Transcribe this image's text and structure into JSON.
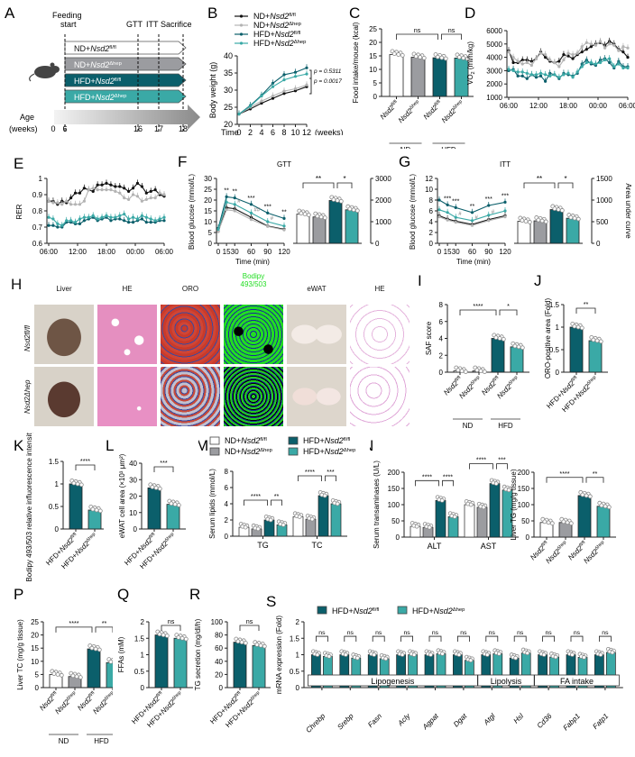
{
  "colors": {
    "nd_fl": "#ffffff",
    "nd_hep": "#9b9ca0",
    "hfd_fl": "#0b5f6b",
    "hfd_hep": "#3aa9a6",
    "black": "#111111",
    "grey_line": "#b3b3b3",
    "bodipy_green": "#22dd22",
    "light_bg": "#f2f2f2",
    "dark_bg": "#d6d6d6"
  },
  "groups": {
    "nd_fl": "ND+Nsd2fl/fl",
    "nd_hep": "ND+Nsd2Δhep",
    "hfd_fl": "HFD+Nsd2fl/fl",
    "hfd_hep": "HFD+Nsd2Δhep"
  },
  "panel_labels": [
    "A",
    "B",
    "C",
    "D",
    "E",
    "F",
    "G",
    "H",
    "I",
    "J",
    "K",
    "L",
    "M",
    "N",
    "O",
    "P",
    "Q",
    "R",
    "S"
  ],
  "panelA": {
    "feeding_start": "Feeding start",
    "gtt": "GTT",
    "itt": "ITT",
    "sacrifice": "Sacrifice",
    "bars": [
      "ND+Nsd2fl/fl",
      "ND+Nsd2Δhep",
      "HFD+Nsd2fl/fl",
      "HFD+Nsd2Δhep"
    ],
    "age_label": "Age",
    "weeks_label": "(weeks)",
    "ticks": [
      "0",
      "6",
      "16",
      "17",
      "18"
    ]
  },
  "chart_data": [
    {
      "id": "B",
      "type": "line",
      "title": "",
      "xlabel": "Time",
      "xunit": "(weeks)",
      "ylabel": "Body weight (g)",
      "x": [
        0,
        2,
        4,
        6,
        8,
        10,
        12
      ],
      "ylim": [
        20,
        40
      ],
      "yticks": [
        20,
        25,
        30,
        35,
        40
      ],
      "series": [
        {
          "name": "ND+Nsd2fl/fl",
          "values": [
            23,
            24.5,
            26.2,
            27.6,
            29,
            29.8,
            31
          ]
        },
        {
          "name": "ND+Nsd2Δhep",
          "values": [
            23,
            25,
            26.8,
            28.3,
            29.7,
            30.4,
            31.5
          ]
        },
        {
          "name": "HFD+Nsd2fl/fl",
          "values": [
            23,
            25.5,
            28.5,
            32,
            34.5,
            35.2,
            36.5
          ]
        },
        {
          "name": "HFD+Nsd2Δhep",
          "values": [
            23,
            25.3,
            28.3,
            31,
            33,
            34,
            34.7
          ]
        }
      ],
      "annotations": [
        "p = 0.5311",
        "p = 0.0017"
      ]
    },
    {
      "id": "C",
      "type": "bar",
      "ylabel": "Food intake/mouse (kcal)",
      "categories": [
        "Nsd2fl/fl",
        "Nsd2Δhep",
        "Nsd2fl/fl",
        "Nsd2Δhep"
      ],
      "group_labels": [
        "ND",
        "HFD"
      ],
      "values": [
        15.5,
        14.5,
        14.3,
        14.2
      ],
      "ylim": [
        0,
        25
      ],
      "yticks": [
        0,
        5,
        10,
        15,
        20,
        25
      ],
      "sig": [
        "ns",
        "ns"
      ]
    },
    {
      "id": "D",
      "type": "line",
      "ylabel": "VO2 (ml/h/kg)",
      "xticks": [
        "06:00",
        "12:00",
        "18:00",
        "00:00",
        "06:00"
      ],
      "ylim": [
        1000,
        6000
      ],
      "yticks": [
        1000,
        2000,
        3000,
        4000,
        5000,
        6000
      ],
      "shading": [
        "Light",
        "Dark"
      ],
      "series": [
        {
          "name": "ND+Nsd2fl/fl",
          "values": [
            4500,
            3600,
            3600,
            3800,
            3800,
            3700,
            3900,
            4400,
            4000,
            3700,
            3600,
            3700,
            4200,
            4100,
            3900,
            4200,
            4400,
            4600,
            4800,
            5000,
            5100,
            4900,
            5200,
            5000,
            4600,
            4400,
            4000
          ]
        },
        {
          "name": "ND+Nsd2Δhep",
          "values": [
            4400,
            4000,
            3700,
            3500,
            3600,
            3400,
            3900,
            4300,
            4200,
            3800,
            3600,
            3300,
            3800,
            4300,
            4200,
            4300,
            4800,
            5100,
            5000,
            4900,
            5200,
            4700,
            5000,
            4900,
            4500,
            4800,
            4700
          ]
        },
        {
          "name": "HFD+Nsd2fl/fl",
          "values": [
            3000,
            3100,
            2600,
            2600,
            2400,
            2700,
            2500,
            2600,
            2200,
            2800,
            2700,
            2400,
            2800,
            2700,
            2600,
            2800,
            3500,
            3800,
            3500,
            3400,
            3800,
            3900,
            3600,
            3200,
            3700,
            3300,
            3300
          ]
        },
        {
          "name": "HFD+Nsd2Δhep",
          "values": [
            3100,
            3000,
            2900,
            2900,
            2800,
            2700,
            2700,
            2800,
            2700,
            2600,
            2700,
            2500,
            2700,
            2800,
            2500,
            2900,
            3300,
            3600,
            3600,
            3500,
            3600,
            3800,
            3900,
            3300,
            3500,
            3200,
            3200
          ]
        }
      ]
    },
    {
      "id": "E",
      "type": "line",
      "ylabel": "RER",
      "xticks": [
        "06:00",
        "12:00",
        "18:00",
        "00:00",
        "06:00"
      ],
      "ylim": [
        0.6,
        1.0
      ],
      "yticks": [
        0.6,
        0.7,
        0.8,
        0.9,
        1.0
      ],
      "shading": [
        "Light",
        "Dark"
      ],
      "series": [
        {
          "name": "ND+Nsd2fl/fl",
          "values": [
            0.86,
            0.86,
            0.84,
            0.86,
            0.85,
            0.88,
            0.91,
            0.91,
            0.94,
            0.93,
            0.92,
            0.96,
            0.96,
            0.97,
            0.96,
            0.95,
            0.95,
            0.94,
            0.92,
            0.94,
            0.97,
            0.95,
            0.91,
            0.92,
            0.93,
            0.9,
            0.89
          ]
        },
        {
          "name": "ND+Nsd2Δhep",
          "values": [
            0.86,
            0.85,
            0.85,
            0.84,
            0.86,
            0.84,
            0.84,
            0.84,
            0.86,
            0.93,
            0.94,
            0.93,
            0.93,
            0.93,
            0.93,
            0.92,
            0.91,
            0.88,
            0.87,
            0.9,
            0.89,
            0.86,
            0.87,
            0.88,
            0.88,
            0.91,
            0.9
          ]
        },
        {
          "name": "HFD+Nsd2fl/fl",
          "values": [
            0.71,
            0.71,
            0.7,
            0.7,
            0.73,
            0.73,
            0.72,
            0.72,
            0.74,
            0.75,
            0.76,
            0.74,
            0.75,
            0.76,
            0.74,
            0.75,
            0.75,
            0.74,
            0.73,
            0.73,
            0.74,
            0.75,
            0.73,
            0.73,
            0.73,
            0.74,
            0.74
          ]
        },
        {
          "name": "HFD+Nsd2Δhep",
          "values": [
            0.76,
            0.75,
            0.72,
            0.71,
            0.74,
            0.74,
            0.73,
            0.75,
            0.76,
            0.76,
            0.77,
            0.75,
            0.76,
            0.77,
            0.76,
            0.76,
            0.77,
            0.78,
            0.75,
            0.76,
            0.75,
            0.77,
            0.76,
            0.75,
            0.74,
            0.75,
            0.76
          ]
        }
      ]
    },
    {
      "id": "F-line",
      "type": "line",
      "title": "GTT",
      "xlabel": "Time (min)",
      "ylabel": "Blood glucose (mmol/L)",
      "x": [
        0,
        15,
        30,
        60,
        90,
        120
      ],
      "ylim": [
        0,
        30
      ],
      "yticks": [
        0,
        5,
        10,
        15,
        20,
        25,
        30
      ],
      "series": [
        {
          "name": "ND+Nsd2fl/fl",
          "values": [
            5.5,
            16.5,
            16,
            12,
            8,
            6.5
          ]
        },
        {
          "name": "ND+Nsd2Δhep",
          "values": [
            5.5,
            15.5,
            15,
            11,
            7.8,
            6.2
          ]
        },
        {
          "name": "HFD+Nsd2fl/fl",
          "values": [
            7,
            21.5,
            21,
            18,
            14,
            11.5
          ]
        },
        {
          "name": "HFD+Nsd2Δhep",
          "values": [
            6.5,
            19,
            18,
            14,
            10,
            8
          ]
        }
      ],
      "sig": [
        "**",
        "**",
        "***",
        "***",
        "**"
      ],
      "sig_hash": [
        "#",
        "##",
        "#"
      ]
    },
    {
      "id": "F-bar",
      "type": "bar",
      "ylabel": "Area under curve",
      "values": [
        1350,
        1220,
        1980,
        1550
      ],
      "ylim": [
        0,
        3000
      ],
      "yticks": [
        0,
        1000,
        2000,
        3000
      ],
      "sig": [
        "**",
        "*"
      ]
    },
    {
      "id": "G-line",
      "type": "line",
      "title": "ITT",
      "xlabel": "Time (min)",
      "ylabel": "Blood glucose (mmol/L)",
      "x": [
        0,
        15,
        30,
        60,
        90,
        120
      ],
      "ylim": [
        0,
        12
      ],
      "yticks": [
        0,
        2,
        4,
        6,
        8,
        10,
        12
      ],
      "series": [
        {
          "name": "ND+Nsd2fl/fl",
          "values": [
            5.1,
            4.5,
            4.1,
            3.5,
            4.4,
            5.1
          ]
        },
        {
          "name": "ND+Nsd2Δhep",
          "values": [
            4.9,
            4.3,
            3.9,
            3.3,
            4.2,
            4.9
          ]
        },
        {
          "name": "HFD+Nsd2fl/fl",
          "values": [
            8,
            7.1,
            6.6,
            5.7,
            7,
            7.6
          ]
        },
        {
          "name": "HFD+Nsd2Δhep",
          "values": [
            6.2,
            5.7,
            4.8,
            4.2,
            5.2,
            6
          ]
        }
      ],
      "sig": [
        "***",
        "***",
        "**",
        "***",
        "***"
      ],
      "sig_hash": [
        "#",
        "#",
        "#"
      ]
    },
    {
      "id": "G-bar",
      "type": "bar",
      "ylabel": "Area under curve",
      "values": [
        510,
        520,
        780,
        580
      ],
      "ylim": [
        0,
        1500
      ],
      "yticks": [
        0,
        500,
        1000,
        1500
      ],
      "sig": [
        "**",
        "*"
      ]
    },
    {
      "id": "I",
      "type": "bar",
      "ylabel": "SAF score",
      "categories": [
        "Nsd2fl/fl",
        "Nsd2Δhep",
        "Nsd2fl/fl",
        "Nsd2Δhep"
      ],
      "group_labels": [
        "ND",
        "HFD"
      ],
      "values": [
        0.15,
        0.15,
        4,
        3
      ],
      "ylim": [
        0,
        8
      ],
      "yticks": [
        0,
        2,
        4,
        6,
        8
      ],
      "sig": [
        "****",
        "*"
      ]
    },
    {
      "id": "J",
      "type": "bar",
      "ylabel": "ORO-positive area (Fold)",
      "categories": [
        "HFD+Nsd2fl/fl",
        "HFD+Nsd2Δhep"
      ],
      "values": [
        1.0,
        0.7
      ],
      "ylim": [
        0,
        1.5
      ],
      "yticks": [
        0.0,
        0.5,
        1.0,
        1.5
      ],
      "sig": [
        "**"
      ]
    },
    {
      "id": "K",
      "type": "bar",
      "ylabel": "Bodipy 493/503 relative influorescence intensity (Fold)",
      "categories": [
        "HFD+Nsd2fl/fl",
        "HFD+Nsd2Δhep"
      ],
      "values": [
        1.0,
        0.42
      ],
      "ylim": [
        0,
        1.5
      ],
      "yticks": [
        0.0,
        0.5,
        1.0,
        1.5
      ],
      "sig": [
        "****"
      ]
    },
    {
      "id": "L",
      "type": "bar",
      "ylabel": "eWAT cell area (×10³ μm²)",
      "categories": [
        "HFD+Nsd2fl/fl",
        "HFD+Nsd2Δhep"
      ],
      "values": [
        25,
        15
      ],
      "ylim": [
        0,
        40
      ],
      "yticks": [
        0,
        10,
        20,
        30,
        40
      ],
      "sig": [
        "***"
      ]
    },
    {
      "id": "M",
      "type": "bar",
      "ylabel": "Serum lipids (mmol/L)",
      "categories": [
        "TG",
        "TC"
      ],
      "ylim": [
        0,
        8
      ],
      "yticks": [
        0,
        2,
        4,
        6,
        8
      ],
      "series": [
        {
          "name": "ND+Nsd2fl/fl",
          "values": [
            1.1,
            2.4
          ]
        },
        {
          "name": "ND+Nsd2Δhep",
          "values": [
            0.9,
            2.1
          ]
        },
        {
          "name": "HFD+Nsd2fl/fl",
          "values": [
            2.0,
            5.0
          ]
        },
        {
          "name": "HFD+Nsd2Δhep",
          "values": [
            1.4,
            4.0
          ]
        }
      ],
      "sig": [
        [
          "****",
          "**"
        ],
        [
          "****",
          "***"
        ]
      ]
    },
    {
      "id": "N",
      "type": "bar",
      "ylabel": "Serum transaminases (U/L)",
      "categories": [
        "ALT",
        "AST"
      ],
      "ylim": [
        0,
        200
      ],
      "yticks": [
        0,
        50,
        100,
        150,
        200
      ],
      "series": [
        {
          "name": "ND+Nsd2fl/fl",
          "values": [
            33,
            100
          ]
        },
        {
          "name": "ND+Nsd2Δhep",
          "values": [
            30,
            92
          ]
        },
        {
          "name": "HFD+Nsd2fl/fl",
          "values": [
            113,
            165
          ]
        },
        {
          "name": "HFD+Nsd2Δhep",
          "values": [
            63,
            145
          ]
        }
      ],
      "sig": [
        [
          "****",
          "****"
        ],
        [
          "****",
          "***"
        ]
      ]
    },
    {
      "id": "O",
      "type": "bar",
      "ylabel": "Liver TG (mg/g tissue)",
      "categories": [
        "Nsd2fl/fl",
        "Nsd2Δhep",
        "Nsd2fl/fl",
        "Nsd2Δhep"
      ],
      "group_labels": [
        "ND",
        "HFD"
      ],
      "values": [
        45,
        45,
        128,
        95
      ],
      "ylim": [
        0,
        200
      ],
      "yticks": [
        0,
        50,
        100,
        150,
        200
      ],
      "sig": [
        "****",
        "**"
      ]
    },
    {
      "id": "P",
      "type": "bar",
      "ylabel": "Liver TC (mg/g tissue)",
      "categories": [
        "Nsd2fl/fl",
        "Nsd2Δhep",
        "Nsd2fl/fl",
        "Nsd2Δhep"
      ],
      "group_labels": [
        "ND",
        "HFD"
      ],
      "values": [
        5,
        4.2,
        14.7,
        9.5
      ],
      "ylim": [
        0,
        25
      ],
      "yticks": [
        0,
        5,
        10,
        15,
        20,
        25
      ],
      "sig": [
        "****",
        "**"
      ]
    },
    {
      "id": "Q",
      "type": "bar",
      "ylabel": "FFAs (mM)",
      "categories": [
        "HFD+Nsd2fl/fl",
        "HFD+Nsd2Δhep"
      ],
      "values": [
        1.6,
        1.5
      ],
      "ylim": [
        0,
        2.0
      ],
      "yticks": [
        0.0,
        0.5,
        1.0,
        1.5,
        2.0
      ],
      "sig": [
        "ns"
      ]
    },
    {
      "id": "R",
      "type": "bar",
      "ylabel": "TG secretion (mg/dl/h)",
      "categories": [
        "HFD+Nsd2fl/fl",
        "HFD+Nsd2Δhep"
      ],
      "values": [
        69,
        64
      ],
      "ylim": [
        0,
        100
      ],
      "yticks": [
        0,
        20,
        40,
        60,
        80,
        100
      ],
      "sig": [
        "ns"
      ]
    },
    {
      "id": "S",
      "type": "bar",
      "ylabel": "mRNA expression (Fold)",
      "categories": [
        "Chrebp",
        "Srebp",
        "Fasn",
        "Acly",
        "Agpat",
        "Dgat",
        "Atgl",
        "Hsl",
        "Cd36",
        "Fabp1",
        "Fatp1"
      ],
      "ylim": [
        0,
        2.0
      ],
      "yticks": [
        0.0,
        0.5,
        1.0,
        1.5,
        2.0
      ],
      "series": [
        {
          "name": "HFD+Nsd2fl/fl",
          "values": [
            1.0,
            1.0,
            1.0,
            1.0,
            1.0,
            1.0,
            1.0,
            0.9,
            1.0,
            1.0,
            1.0
          ]
        },
        {
          "name": "HFD+Nsd2Δhep",
          "values": [
            0.95,
            0.9,
            0.88,
            1.0,
            1.03,
            0.83,
            1.03,
            1.05,
            0.93,
            0.92,
            1.07
          ]
        }
      ],
      "category_groups": [
        {
          "label": "Lipogenesis",
          "from": 0,
          "to": 5
        },
        {
          "label": "Lipolysis",
          "from": 6,
          "to": 7
        },
        {
          "label": "FA intake",
          "from": 8,
          "to": 10
        }
      ],
      "sig": [
        "ns",
        "ns",
        "ns",
        "ns",
        "ns",
        "ns",
        "ns",
        "ns",
        "ns",
        "ns",
        "ns"
      ]
    }
  ],
  "panelH": {
    "columns": [
      "Liver",
      "HE",
      "ORO",
      "Bodipy 493/503",
      "eWAT",
      "HE"
    ],
    "rows": [
      "Nsd2fl/fl",
      "Nsd2Δhep"
    ]
  }
}
